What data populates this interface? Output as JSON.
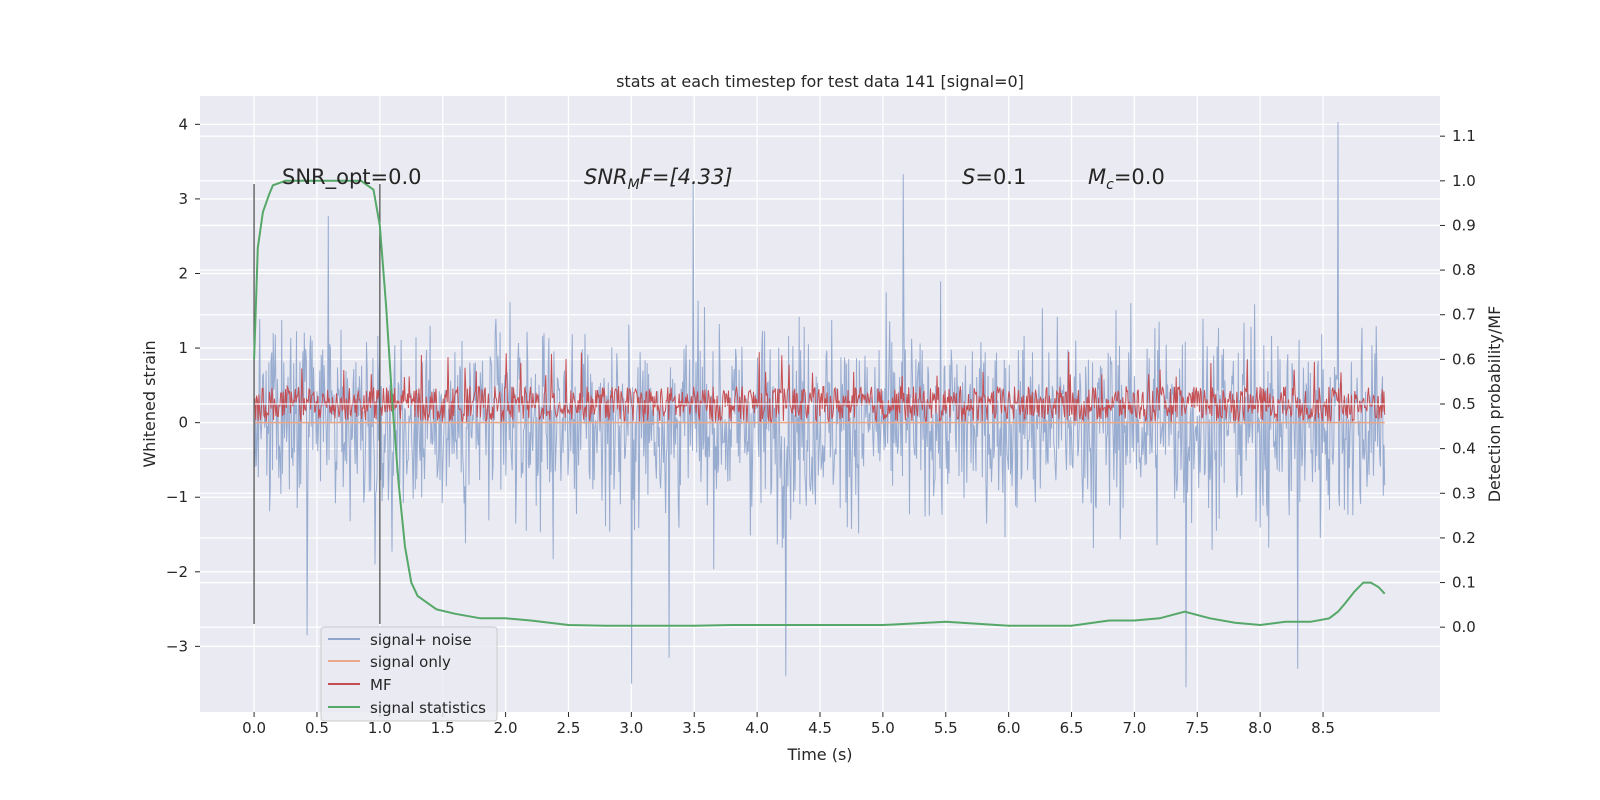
{
  "chart_data": {
    "type": "line",
    "title": "stats at each timestep for test data 141 [signal=0]",
    "xlabel": "Time (s)",
    "ylabel_left": "Whitened strain",
    "ylabel_right": "Detection probability/MF",
    "xlim": [
      -0.43,
      9.43
    ],
    "ylim_left": [
      -3.88,
      4.38
    ],
    "ylim_right": [
      -0.19,
      1.19
    ],
    "x_ticks": [
      "0.0",
      "0.5",
      "1.0",
      "1.5",
      "2.0",
      "2.5",
      "3.0",
      "3.5",
      "4.0",
      "4.5",
      "5.0",
      "5.5",
      "6.0",
      "6.5",
      "7.0",
      "7.5",
      "8.0",
      "8.5"
    ],
    "y_left_ticks": [
      "−3",
      "−2",
      "−1",
      "0",
      "1",
      "2",
      "3",
      "4"
    ],
    "y_right_ticks": [
      "0.0",
      "0.1",
      "0.2",
      "0.3",
      "0.4",
      "0.5",
      "0.6",
      "0.7",
      "0.8",
      "0.9",
      "1.0",
      "1.1"
    ],
    "grid": true,
    "legend_position": "lower-left",
    "annotations": {
      "snr_opt": "SNR_opt=0.0",
      "snr_mf_main": "SNR",
      "snr_mf_sub": "M",
      "snr_mf_rest": "F=[4.33]",
      "s_main": "S",
      "s_rest": "=0.1",
      "mc_main": "M",
      "mc_sub": "c",
      "mc_rest": "=0.0"
    },
    "vertical_lines_x": [
      0.0,
      1.0
    ],
    "series": [
      {
        "name": "signal+ noise",
        "axis": "left",
        "color": "#8fa5cc",
        "x_range": [
          0.0,
          8.99
        ],
        "typical_envelope": [
          -1.5,
          1.5
        ],
        "extremes": [
          {
            "x": 0.42,
            "y": -2.85
          },
          {
            "x": 0.59,
            "y": 2.77
          },
          {
            "x": 3.0,
            "y": -3.5
          },
          {
            "x": 3.3,
            "y": -3.15
          },
          {
            "x": 3.49,
            "y": 3.2
          },
          {
            "x": 4.23,
            "y": -3.4
          },
          {
            "x": 5.16,
            "y": 3.33
          },
          {
            "x": 7.41,
            "y": -3.55
          },
          {
            "x": 8.3,
            "y": -3.3
          },
          {
            "x": 8.62,
            "y": 4.03
          }
        ]
      },
      {
        "name": "signal only",
        "axis": "left",
        "color": "#e8a889",
        "x": [
          0.0,
          8.99
        ],
        "y": [
          0.0,
          0.0
        ]
      },
      {
        "name": "MF",
        "axis": "right",
        "color": "#c44e52",
        "x_range": [
          0.0,
          8.99
        ],
        "typical_band": [
          0.46,
          0.56
        ],
        "max_spike": 0.62,
        "baseline": 0.5
      },
      {
        "name": "signal statistics",
        "axis": "right",
        "color": "#55a868",
        "x": [
          0.0,
          0.03,
          0.07,
          0.12,
          0.15,
          0.25,
          0.5,
          0.75,
          0.85,
          0.95,
          1.0,
          1.05,
          1.1,
          1.15,
          1.2,
          1.25,
          1.3,
          1.35,
          1.45,
          1.6,
          1.8,
          2.0,
          2.2,
          2.5,
          2.8,
          3.2,
          3.5,
          3.8,
          4.2,
          4.5,
          5.0,
          5.5,
          6.0,
          6.5,
          6.8,
          7.0,
          7.2,
          7.4,
          7.6,
          7.8,
          8.0,
          8.2,
          8.4,
          8.55,
          8.62,
          8.68,
          8.75,
          8.82,
          8.88,
          8.94,
          8.99
        ],
        "y": [
          0.6,
          0.85,
          0.93,
          0.97,
          0.99,
          1.0,
          1.0,
          1.0,
          1.0,
          0.98,
          0.9,
          0.72,
          0.5,
          0.32,
          0.18,
          0.1,
          0.07,
          0.06,
          0.04,
          0.03,
          0.02,
          0.02,
          0.015,
          0.005,
          0.003,
          0.003,
          0.003,
          0.005,
          0.005,
          0.005,
          0.005,
          0.012,
          0.003,
          0.003,
          0.015,
          0.015,
          0.02,
          0.035,
          0.02,
          0.01,
          0.005,
          0.012,
          0.012,
          0.02,
          0.035,
          0.055,
          0.08,
          0.1,
          0.1,
          0.09,
          0.075
        ]
      }
    ]
  }
}
